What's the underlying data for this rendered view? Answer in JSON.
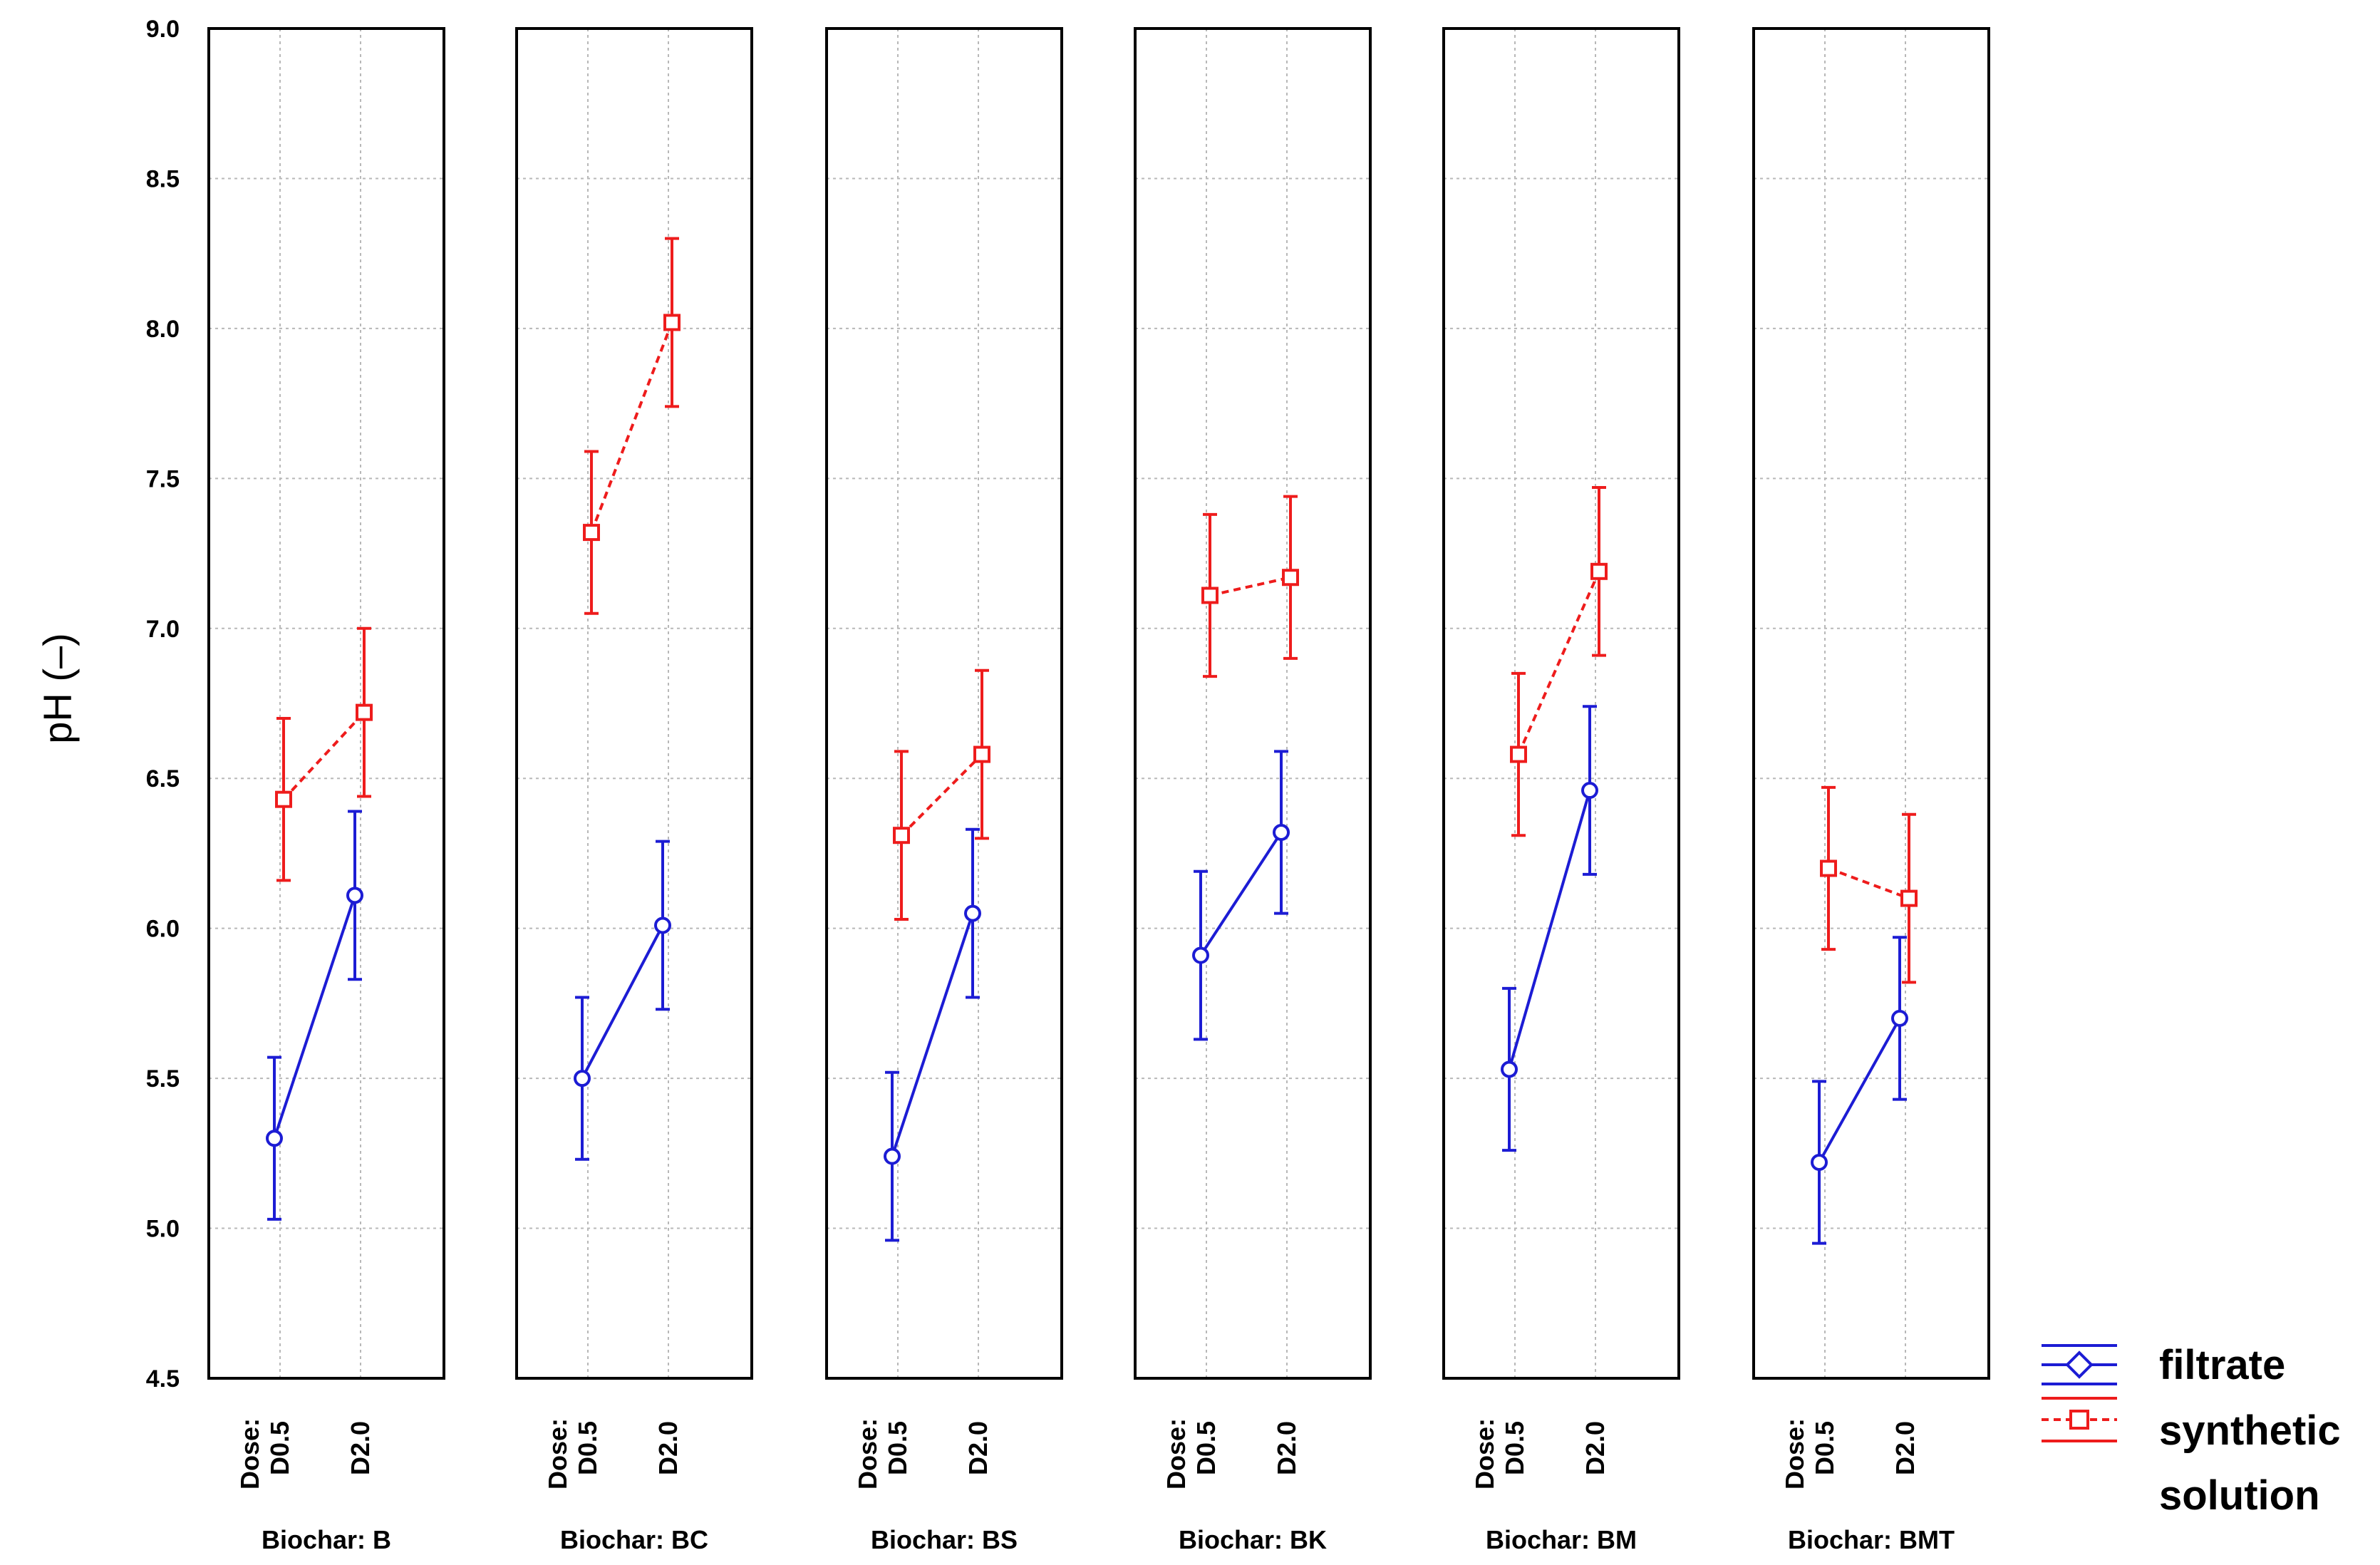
{
  "chart_data": {
    "type": "line",
    "ylabel": "pH (–)",
    "ylim": [
      4.5,
      9.0
    ],
    "yticks": [
      "9.0",
      "8.5",
      "8.0",
      "7.5",
      "7.0",
      "6.5",
      "6.0",
      "5.5",
      "5.0",
      "4.5"
    ],
    "dose_label": "Dose:",
    "categories": [
      "D0.5",
      "D2.0"
    ],
    "series_styles": [
      {
        "name": "filtrate",
        "color": "#1c1cd4",
        "marker": "circle",
        "line": "solid"
      },
      {
        "name": "synthetic solution",
        "color": "#ee1c1c",
        "marker": "square",
        "line": "dashed"
      }
    ],
    "legend": {
      "line1": "filtrate",
      "line2": "synthetic",
      "line3": "solution",
      "position": "bottom-right"
    },
    "panels": [
      {
        "title": "Biochar: B",
        "series": [
          {
            "name": "filtrate",
            "values": [
              5.3,
              6.11
            ],
            "errors": [
              0.27,
              0.28
            ]
          },
          {
            "name": "synthetic solution",
            "values": [
              6.43,
              6.72
            ],
            "errors": [
              0.27,
              0.28
            ]
          }
        ]
      },
      {
        "title": "Biochar: BC",
        "series": [
          {
            "name": "filtrate",
            "values": [
              5.5,
              6.01
            ],
            "errors": [
              0.27,
              0.28
            ]
          },
          {
            "name": "synthetic solution",
            "values": [
              7.32,
              8.02
            ],
            "errors": [
              0.27,
              0.28
            ]
          }
        ]
      },
      {
        "title": "Biochar: BS",
        "series": [
          {
            "name": "filtrate",
            "values": [
              5.24,
              6.05
            ],
            "errors": [
              0.28,
              0.28
            ]
          },
          {
            "name": "synthetic solution",
            "values": [
              6.31,
              6.58
            ],
            "errors": [
              0.28,
              0.28
            ]
          }
        ]
      },
      {
        "title": "Biochar: BK",
        "series": [
          {
            "name": "filtrate",
            "values": [
              5.91,
              6.32
            ],
            "errors": [
              0.28,
              0.27
            ]
          },
          {
            "name": "synthetic solution",
            "values": [
              7.11,
              7.17
            ],
            "errors": [
              0.27,
              0.27
            ]
          }
        ]
      },
      {
        "title": "Biochar: BM",
        "series": [
          {
            "name": "filtrate",
            "values": [
              5.53,
              6.46
            ],
            "errors": [
              0.27,
              0.28
            ]
          },
          {
            "name": "synthetic solution",
            "values": [
              6.58,
              7.19
            ],
            "errors": [
              0.27,
              0.28
            ]
          }
        ]
      },
      {
        "title": "Biochar: BMT",
        "series": [
          {
            "name": "filtrate",
            "values": [
              5.22,
              5.7
            ],
            "errors": [
              0.27,
              0.27
            ]
          },
          {
            "name": "synthetic solution",
            "values": [
              6.2,
              6.1
            ],
            "errors": [
              0.27,
              0.28
            ]
          }
        ]
      }
    ]
  }
}
